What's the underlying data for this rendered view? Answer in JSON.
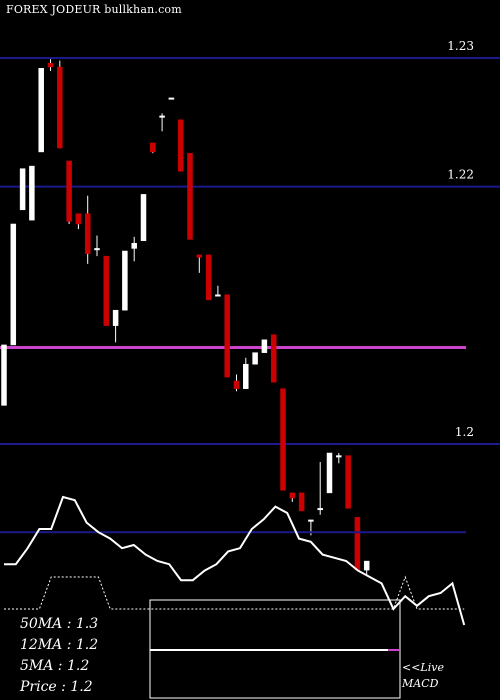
{
  "header": {
    "title": "FOREX  JODEUR bullkhan.com"
  },
  "indicators": {
    "ma50_label": "50MA : 1.3",
    "ma12_label": "12MA : 1.2",
    "ma5_label": "5MA : 1.2",
    "price_label": "Price   : 1.2"
  },
  "live": {
    "line1": "<<Live",
    "line2": "MACD"
  },
  "colors": {
    "background": "#000000",
    "up_candle": "#ffffff",
    "down_candle": "#cc0000",
    "price_grid": "#1a1a8c",
    "ma_line": "#cc44cc",
    "indicator_line": "#ffffff",
    "indicator_ref": "#1a1a8c",
    "macd_box_border": "#ffffff"
  },
  "chart_data": {
    "type": "candlestick",
    "price_axis": {
      "ticks": [
        1.23,
        1.22,
        1.2
      ]
    },
    "moving_average": 1.2075,
    "candles": [
      {
        "o": 1.203,
        "h": 1.2077,
        "l": 1.203,
        "c": 1.2077
      },
      {
        "o": 1.2077,
        "h": 1.2171,
        "l": 1.2077,
        "c": 1.2171
      },
      {
        "o": 1.2182,
        "h": 1.2214,
        "l": 1.2182,
        "c": 1.2214
      },
      {
        "o": 1.2174,
        "h": 1.2216,
        "l": 1.2174,
        "c": 1.2216
      },
      {
        "o": 1.2227,
        "h": 1.2292,
        "l": 1.2227,
        "c": 1.2292
      },
      {
        "o": 1.2296,
        "h": 1.2299,
        "l": 1.229,
        "c": 1.2293
      },
      {
        "o": 1.2293,
        "h": 1.2298,
        "l": 1.223,
        "c": 1.223
      },
      {
        "o": 1.222,
        "h": 1.222,
        "l": 1.2171,
        "c": 1.2173
      },
      {
        "o": 1.2179,
        "h": 1.2179,
        "l": 1.2167,
        "c": 1.2171
      },
      {
        "o": 1.2179,
        "h": 1.2193,
        "l": 1.214,
        "c": 1.2148
      },
      {
        "o": 1.2152,
        "h": 1.2162,
        "l": 1.2146,
        "c": 1.2152
      },
      {
        "o": 1.2146,
        "h": 1.2146,
        "l": 1.2092,
        "c": 1.2092
      },
      {
        "o": 1.2092,
        "h": 1.2104,
        "l": 1.2079,
        "c": 1.2104
      },
      {
        "o": 1.2104,
        "h": 1.215,
        "l": 1.2104,
        "c": 1.215
      },
      {
        "o": 1.2152,
        "h": 1.2161,
        "l": 1.2142,
        "c": 1.2156
      },
      {
        "o": 1.2158,
        "h": 1.2194,
        "l": 1.2158,
        "c": 1.2194
      },
      {
        "o": 1.2234,
        "h": 1.2234,
        "l": 1.2226,
        "c": 1.2227
      },
      {
        "o": 1.2255,
        "h": 1.2257,
        "l": 1.2243,
        "c": 1.2255
      },
      {
        "o": 1.2269,
        "h": 1.2269,
        "l": 1.2269,
        "c": 1.2269
      },
      {
        "o": 1.2252,
        "h": 1.2252,
        "l": 1.2212,
        "c": 1.2212
      },
      {
        "o": 1.2226,
        "h": 1.2226,
        "l": 1.2159,
        "c": 1.2159
      },
      {
        "o": 1.2147,
        "h": 1.2147,
        "l": 1.2133,
        "c": 1.2145
      },
      {
        "o": 1.2147,
        "h": 1.2147,
        "l": 1.2112,
        "c": 1.2112
      },
      {
        "o": 1.2115,
        "h": 1.2123,
        "l": 1.2115,
        "c": 1.2116
      },
      {
        "o": 1.2116,
        "h": 1.2116,
        "l": 1.2052,
        "c": 1.2052
      },
      {
        "o": 1.2049,
        "h": 1.2054,
        "l": 1.2041,
        "c": 1.2043
      },
      {
        "o": 1.2043,
        "h": 1.2067,
        "l": 1.2043,
        "c": 1.2062
      },
      {
        "o": 1.2062,
        "h": 1.2069,
        "l": 1.2062,
        "c": 1.2071
      },
      {
        "o": 1.2071,
        "h": 1.2081,
        "l": 1.2071,
        "c": 1.2081
      },
      {
        "o": 1.2085,
        "h": 1.2085,
        "l": 1.2048,
        "c": 1.2048
      },
      {
        "o": 1.2043,
        "h": 1.2043,
        "l": 1.1964,
        "c": 1.1964
      },
      {
        "o": 1.1962,
        "h": 1.1962,
        "l": 1.1955,
        "c": 1.1958
      },
      {
        "o": 1.1962,
        "h": 1.1962,
        "l": 1.1948,
        "c": 1.1948
      },
      {
        "o": 1.1941,
        "h": 1.1941,
        "l": 1.1929,
        "c": 1.1941
      },
      {
        "o": 1.195,
        "h": 1.1986,
        "l": 1.1945,
        "c": 1.195
      },
      {
        "o": 1.1962,
        "h": 1.1993,
        "l": 1.1962,
        "c": 1.1993
      },
      {
        "o": 1.1991,
        "h": 1.1993,
        "l": 1.1985,
        "c": 1.1991
      },
      {
        "o": 1.1991,
        "h": 1.1991,
        "l": 1.195,
        "c": 1.195
      },
      {
        "o": 1.1943,
        "h": 1.1943,
        "l": 1.1902,
        "c": 1.1902
      },
      {
        "o": 1.1902,
        "h": 1.1909,
        "l": 1.1898,
        "c": 1.1909
      }
    ],
    "indicator": {
      "reference_level": 0.58,
      "line": [
        0.38,
        0.38,
        0.48,
        0.6,
        0.6,
        0.8,
        0.78,
        0.64,
        0.58,
        0.54,
        0.48,
        0.5,
        0.44,
        0.4,
        0.38,
        0.28,
        0.28,
        0.34,
        0.38,
        0.46,
        0.48,
        0.6,
        0.66,
        0.74,
        0.7,
        0.54,
        0.52,
        0.44,
        0.42,
        0.4,
        0.34,
        0.3,
        0.26,
        0.1,
        0.18,
        0.12,
        0.18,
        0.2,
        0.26,
        0.0
      ],
      "signal": [
        0.1,
        0.1,
        0.1,
        0.1,
        0.3,
        0.3,
        0.3,
        0.3,
        0.3,
        0.1,
        0.1,
        0.1,
        0.1,
        0.1,
        0.1,
        0.1,
        0.1,
        0.1,
        0.1,
        0.1,
        0.1,
        0.1,
        0.1,
        0.1,
        0.1,
        0.1,
        0.1,
        0.1,
        0.1,
        0.1,
        0.1,
        0.1,
        0.1,
        0.1,
        0.3,
        0.1,
        0.1,
        0.1,
        0.1,
        0.1
      ]
    }
  }
}
